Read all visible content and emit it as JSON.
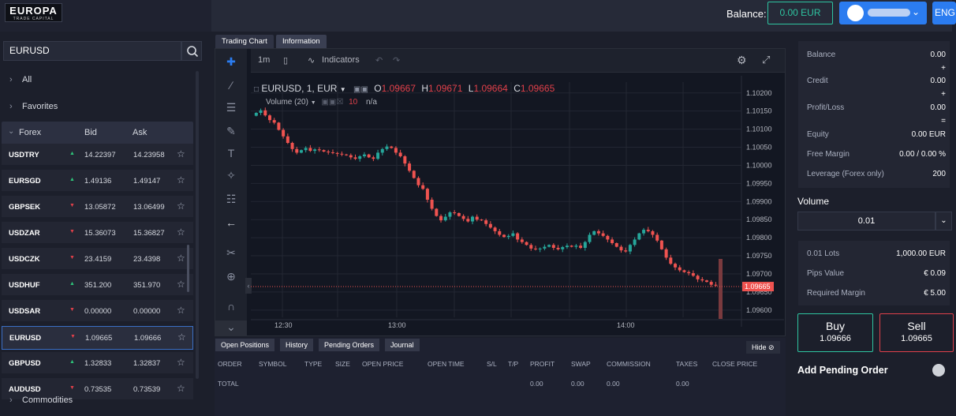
{
  "header": {
    "logo_main": "EUROPA",
    "logo_sub": "TRADE CAPITAL",
    "balance_label": "Balance:",
    "balance_value": "0.00 EUR",
    "lang": "ENG"
  },
  "search": {
    "value": "EURUSD"
  },
  "categories": {
    "all": "All",
    "favorites": "Favorites",
    "forex": "Forex",
    "commodities": "Commodities"
  },
  "list_headers": {
    "bid": "Bid",
    "ask": "Ask"
  },
  "instruments": [
    {
      "symbol": "USDTRY",
      "dir": "up",
      "bid": "14.22397",
      "ask": "14.23958"
    },
    {
      "symbol": "EURSGD",
      "dir": "up",
      "bid": "1.49136",
      "ask": "1.49147"
    },
    {
      "symbol": "GBPSEK",
      "dir": "down",
      "bid": "13.05872",
      "ask": "13.06499"
    },
    {
      "symbol": "USDZAR",
      "dir": "down",
      "bid": "15.36073",
      "ask": "15.36827"
    },
    {
      "symbol": "USDCZK",
      "dir": "down",
      "bid": "23.4159",
      "ask": "23.4398"
    },
    {
      "symbol": "USDHUF",
      "dir": "up",
      "bid": "351.200",
      "ask": "351.970"
    },
    {
      "symbol": "USDSAR",
      "dir": "down",
      "bid": "0.00000",
      "ask": "0.00000"
    },
    {
      "symbol": "EURUSD",
      "dir": "down",
      "bid": "1.09665",
      "ask": "1.09666",
      "selected": true
    },
    {
      "symbol": "GBPUSD",
      "dir": "up",
      "bid": "1.32833",
      "ask": "1.32837"
    },
    {
      "symbol": "AUDUSD",
      "dir": "down",
      "bid": "0.73535",
      "ask": "0.73539"
    }
  ],
  "tabs": {
    "trading_chart": "Trading Chart",
    "information": "Information"
  },
  "chart_toolbar": {
    "interval": "1m",
    "indicators": "Indicators"
  },
  "chart_legend": {
    "symbol": "EURUSD, 1, EUR",
    "o_label": "O",
    "o": "1.09667",
    "h_label": "H",
    "h": "1.09671",
    "l_label": "L",
    "l": "1.09664",
    "c_label": "C",
    "c": "1.09665",
    "volume": "Volume (20)",
    "vol_value": "10",
    "vol_na": "n/a"
  },
  "chart_data": {
    "type": "candlestick",
    "yticks": [
      "1.10200",
      "1.10150",
      "1.10100",
      "1.10050",
      "1.10000",
      "1.09950",
      "1.09900",
      "1.09850",
      "1.09800",
      "1.09750",
      "1.09700",
      "1.09650",
      "1.09600"
    ],
    "ylim": [
      1.0958,
      1.1023
    ],
    "xticks": [
      "12:30",
      "13:00",
      "14:00"
    ],
    "last_price": "1.09665",
    "close_path": [
      1.10145,
      1.10152,
      1.10138,
      1.10125,
      1.10118,
      1.10098,
      1.1008,
      1.10062,
      1.10045,
      1.10035,
      1.10042,
      1.10048,
      1.1004,
      1.10044,
      1.10042,
      1.10038,
      1.10036,
      1.10034,
      1.10032,
      1.1003,
      1.10028,
      1.10022,
      1.10018,
      1.10025,
      1.1003,
      1.10022,
      1.10018,
      1.10035,
      1.10045,
      1.10052,
      1.10048,
      1.10035,
      1.10025,
      1.10005,
      1.09985,
      1.09965,
      1.09945,
      1.09935,
      1.09905,
      1.0988,
      1.0986,
      1.09848,
      1.09858,
      1.0987,
      1.09868,
      1.0986,
      1.09852,
      1.09845,
      1.09858,
      1.0985,
      1.09848,
      1.09838,
      1.09828,
      1.09818,
      1.09808,
      1.09802,
      1.09805,
      1.09812,
      1.09795,
      1.09788,
      1.0978,
      1.0977,
      1.09768,
      1.0977,
      1.09775,
      1.0978,
      1.09772,
      1.09768,
      1.09774,
      1.09778,
      1.09775,
      1.09778,
      1.09772,
      1.09788,
      1.09808,
      1.09818,
      1.09812,
      1.09805,
      1.09795,
      1.09785,
      1.09775,
      1.09765,
      1.09762,
      1.0978,
      1.09795,
      1.09812,
      1.09822,
      1.09818,
      1.09808,
      1.09792,
      1.09768,
      1.09745,
      1.09728,
      1.09718,
      1.0971,
      1.09705,
      1.09702,
      1.09695,
      1.09685,
      1.09682,
      1.09678,
      1.0967,
      1.09668,
      1.09665
    ]
  },
  "bottom_tabs": {
    "open_positions": "Open Positions",
    "history": "History",
    "pending": "Pending Orders",
    "journal": "Journal",
    "hide": "Hide"
  },
  "columns": [
    "ORDER",
    "SYMBOL",
    "TYPE",
    "SIZE",
    "OPEN PRICE",
    "OPEN TIME",
    "S/L",
    "T/P",
    "PROFIT",
    "SWAP",
    "COMMISSION",
    "TAXES",
    "CLOSE PRICE"
  ],
  "totals": {
    "label": "TOTAL",
    "profit": "0.00",
    "swap": "0.00",
    "commission": "0.00",
    "taxes": "0.00"
  },
  "account": {
    "balance_label": "Balance",
    "balance": "0.00",
    "op1": "+",
    "credit_label": "Credit",
    "credit": "0.00",
    "op2": "+",
    "pl_label": "Profit/Loss",
    "pl": "0.00",
    "op3": "=",
    "equity_label": "Equity",
    "equity": "0.00 EUR",
    "free_margin_label": "Free Margin",
    "free_margin": "0.00 / 0.00 %",
    "leverage_label": "Leverage (Forex only)",
    "leverage": "200"
  },
  "volume": {
    "label": "Volume",
    "value": "0.01"
  },
  "calc": {
    "lots_label": "0.01 Lots",
    "lots": "1,000.00 EUR",
    "pips_label": "Pips Value",
    "pips": "€ 0.09",
    "margin_label": "Required Margin",
    "margin": "€ 5.00"
  },
  "buy": {
    "label": "Buy",
    "price": "1.09666"
  },
  "sell": {
    "label": "Sell",
    "price": "1.09665"
  },
  "pending_order": {
    "label": "Add Pending Order"
  }
}
